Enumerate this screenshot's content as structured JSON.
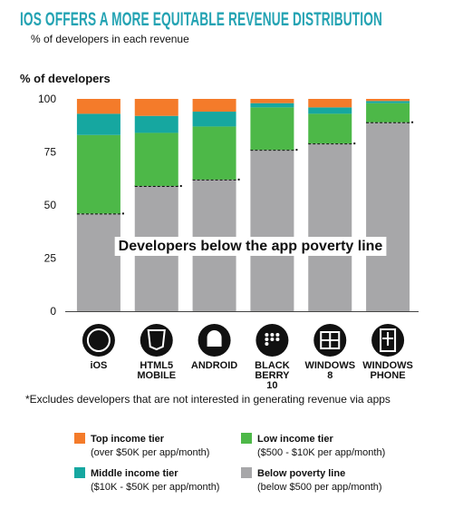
{
  "chart_data": {
    "type": "stacked_bar",
    "title": "IOS OFFERS A MORE EQUITABLE REVENUE DISTRIBUTION",
    "subtitle": "% of developers in each revenue",
    "y_label": "% of developers",
    "annotation": "Developers below the app poverty line",
    "footnote": "*Excludes developers that are not interested in generating revenue via apps",
    "categories": [
      "iOS",
      "HTML5 MOBILE",
      "ANDROID",
      "BLACK BERRY 10",
      "WINDOWS 8",
      "WINDOWS PHONE"
    ],
    "ylim": [
      0,
      100
    ],
    "yticks": [
      0,
      25,
      50,
      75,
      100
    ],
    "series": [
      {
        "name": "Below poverty line",
        "description": "(below $500 per app/month)",
        "color": "#a7a7a9",
        "values": [
          46,
          59,
          62,
          76,
          79,
          89
        ]
      },
      {
        "name": "Low income tier",
        "description": "($500 - $10K per app/month)",
        "color": "#4db848",
        "values": [
          37,
          25,
          25,
          20,
          14,
          9
        ]
      },
      {
        "name": "Middle income tier",
        "description": "($10K - $50K per app/month)",
        "color": "#16a7a0",
        "values": [
          10,
          8,
          7,
          2,
          3,
          1
        ]
      },
      {
        "name": "Top income tier",
        "description": "(over $50K per app/month)",
        "color": "#f47b2a",
        "values": [
          7,
          8,
          6,
          2,
          4,
          1
        ]
      }
    ]
  }
}
